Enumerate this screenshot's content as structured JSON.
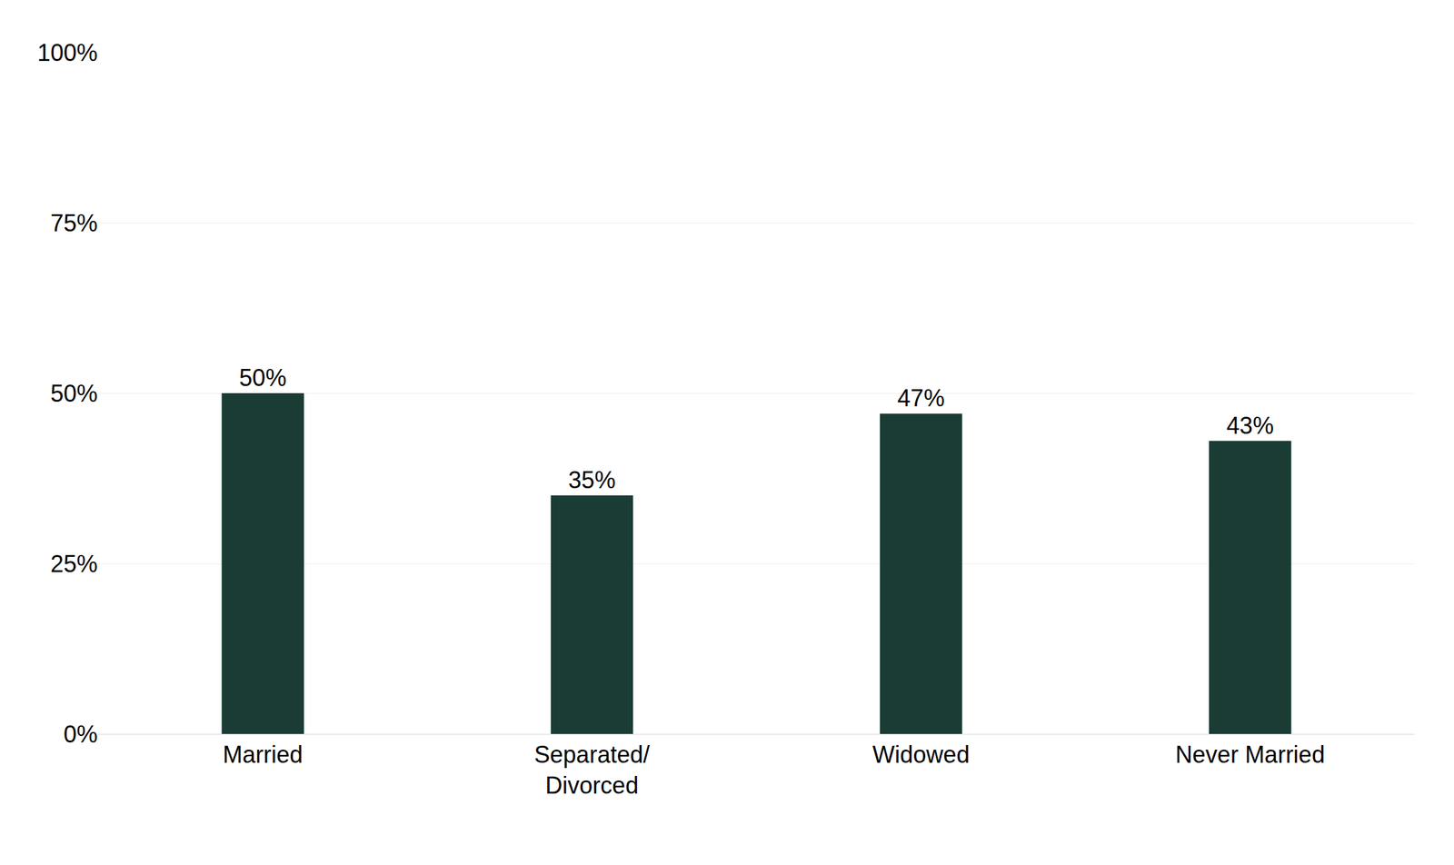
{
  "chart_data": {
    "type": "bar",
    "categories": [
      "Married",
      "Separated/\nDivorced",
      "Widowed",
      "Never Married"
    ],
    "values": [
      50,
      35,
      47,
      43
    ],
    "value_labels": [
      "50%",
      "35%",
      "47%",
      "43%"
    ],
    "data_labels": true,
    "color": "#1a3c34",
    "ylim": [
      0,
      100
    ],
    "yticks": [
      {
        "value": 0,
        "label": "0%"
      },
      {
        "value": 25,
        "label": "25%"
      },
      {
        "value": 50,
        "label": "50%"
      },
      {
        "value": 75,
        "label": "75%"
      },
      {
        "value": 100,
        "label": "100%"
      }
    ],
    "grid": true
  }
}
